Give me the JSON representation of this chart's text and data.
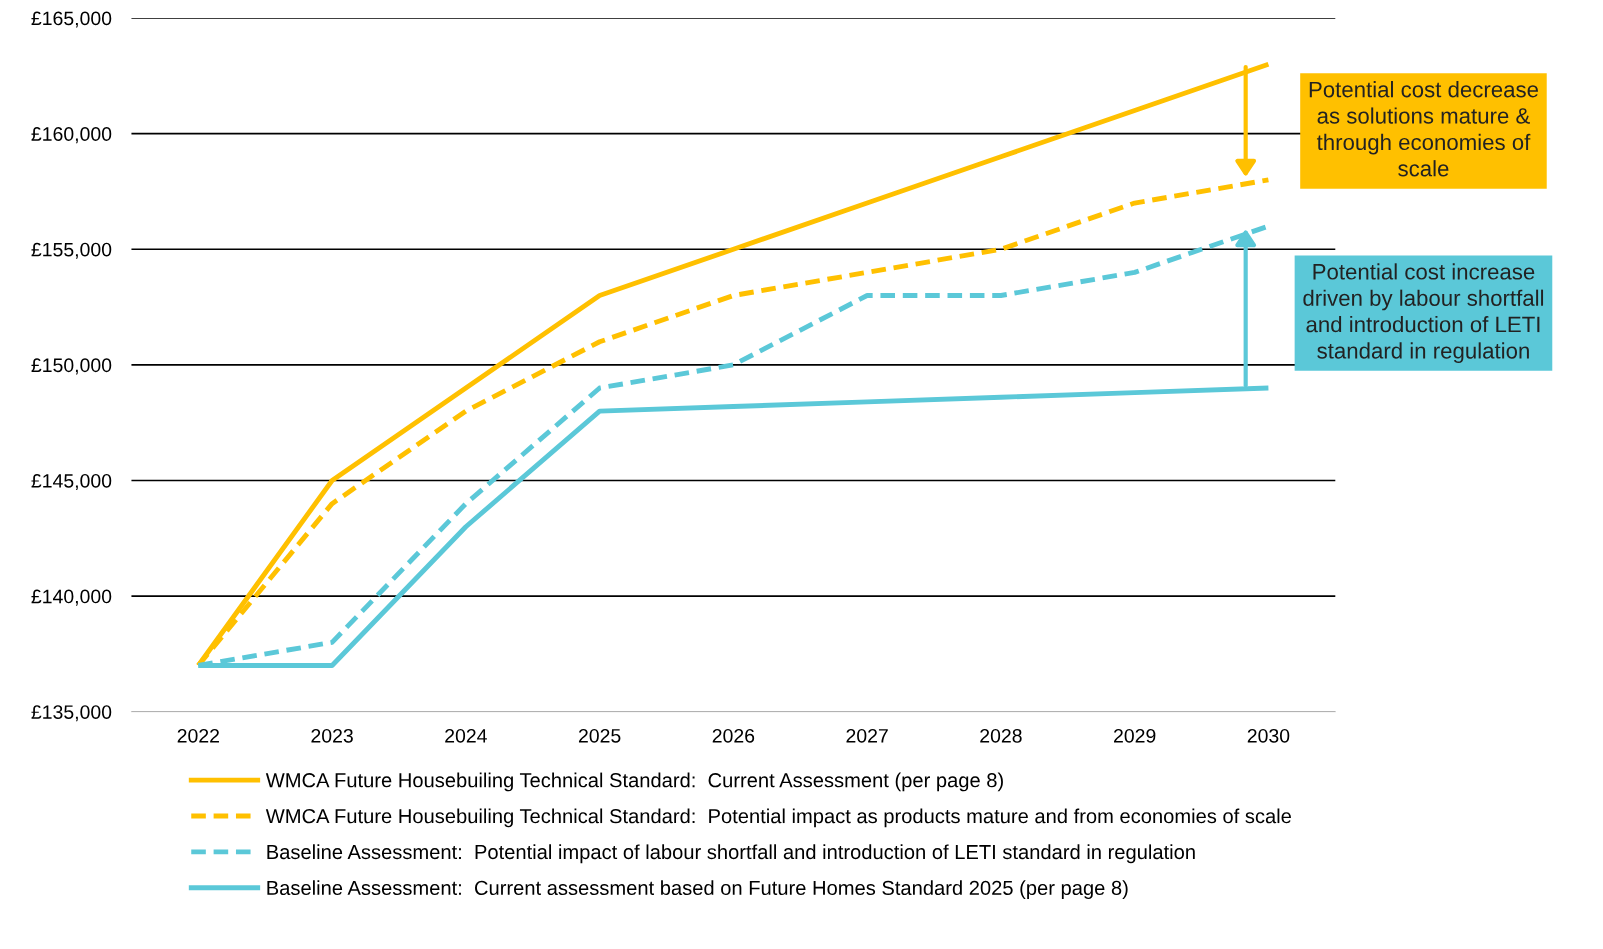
{
  "chart_data": {
    "type": "line",
    "categories": [
      "2022",
      "2023",
      "2024",
      "2025",
      "2026",
      "2027",
      "2028",
      "2029",
      "2030"
    ],
    "series": [
      {
        "name": "WMCA Future Housebuiling Technical Standard:  Current Assessment (per page 8)",
        "color": "#ffc000",
        "line_style": "solid",
        "values": [
          137000,
          145000,
          149000,
          153000,
          155000,
          157000,
          159000,
          161000,
          163000
        ]
      },
      {
        "name": "WMCA Future Housebuiling Technical Standard:  Potential impact as products mature and from economies of scale",
        "color": "#ffc000",
        "line_style": "dashed",
        "values": [
          137000,
          144000,
          148000,
          151000,
          153000,
          154000,
          155000,
          157000,
          158000
        ]
      },
      {
        "name": "Baseline Assessment:  Potential impact of labour shortfall and introduction of LETI standard in regulation",
        "color": "#5bc8d8",
        "line_style": "dashed",
        "values": [
          137000,
          138000,
          144000,
          149000,
          150000,
          153000,
          153000,
          154000,
          156000
        ]
      },
      {
        "name": "Baseline Assessment:  Current assessment based on Future Homes Standard 2025 (per page 8)",
        "color": "#5bc8d8",
        "line_style": "solid",
        "values": [
          137000,
          137000,
          143000,
          148000,
          148200,
          148400,
          148600,
          148800,
          149000
        ]
      }
    ],
    "ylim": [
      135000,
      165000
    ],
    "yticks": [
      {
        "value": 135000,
        "label": "£135,000"
      },
      {
        "value": 140000,
        "label": "£140,000"
      },
      {
        "value": 145000,
        "label": "£145,000"
      },
      {
        "value": 150000,
        "label": "£150,000"
      },
      {
        "value": 155000,
        "label": "£155,000"
      },
      {
        "value": 160000,
        "label": "£160,000"
      },
      {
        "value": 165000,
        "label": "£165,000"
      }
    ],
    "grid": "y",
    "legend": "bottom",
    "marker": "none",
    "annotations": [
      {
        "text": "Potential cost decrease\nas solutions mature &\nthrough economies of\nscale",
        "x": "2030",
        "y": 163000
      },
      {
        "text": "Potential cost increase\ndriven by labour shortfall\nand introduction of LETI\nstandard in regulation",
        "x": "2030",
        "y": 149000
      }
    ]
  }
}
